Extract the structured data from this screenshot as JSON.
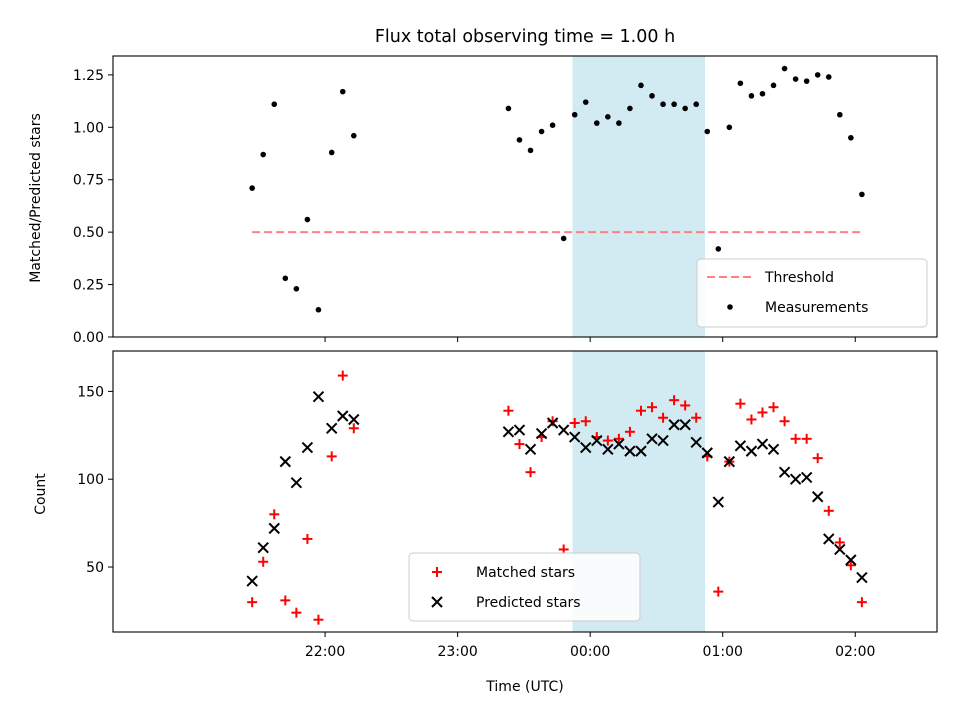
{
  "figure": {
    "title": "Flux total observing time = 1.00 h"
  },
  "chart_data": [
    {
      "type": "scatter",
      "ylabel": "Matched/Predicted stars",
      "xlim_minutes_after_2100": [
        -36,
        337
      ],
      "ylim": [
        0,
        1.34
      ],
      "y_ticks": [
        0.0,
        0.25,
        0.5,
        0.75,
        1.0,
        1.25
      ],
      "y_tick_labels": [
        "0.00",
        "0.25",
        "0.50",
        "0.75",
        "1.00",
        "1.25"
      ],
      "highlight_span": {
        "start": "23:52",
        "end": "00:52",
        "color": "#add8e6"
      },
      "threshold": {
        "name": "Threshold",
        "value": 0.5,
        "x_range": [
          "21:27",
          "02:03"
        ],
        "color": "#ff7f7f"
      },
      "legend": {
        "position": "lower right",
        "entries": [
          "Threshold",
          "Measurements"
        ]
      },
      "series": [
        {
          "name": "Measurements",
          "marker": "dot",
          "color": "#000000",
          "points": [
            {
              "time": "21:27",
              "y": 0.71
            },
            {
              "time": "21:32",
              "y": 0.87
            },
            {
              "time": "21:37",
              "y": 1.11
            },
            {
              "time": "21:42",
              "y": 0.28
            },
            {
              "time": "21:47",
              "y": 0.23
            },
            {
              "time": "21:52",
              "y": 0.56
            },
            {
              "time": "21:57",
              "y": 0.13
            },
            {
              "time": "22:03",
              "y": 0.88
            },
            {
              "time": "22:08",
              "y": 1.17
            },
            {
              "time": "22:13",
              "y": 0.96
            },
            {
              "time": "23:23",
              "y": 1.09
            },
            {
              "time": "23:28",
              "y": 0.94
            },
            {
              "time": "23:33",
              "y": 0.89
            },
            {
              "time": "23:38",
              "y": 0.98
            },
            {
              "time": "23:43",
              "y": 1.01
            },
            {
              "time": "23:48",
              "y": 0.47
            },
            {
              "time": "23:53",
              "y": 1.06
            },
            {
              "time": "23:58",
              "y": 1.12
            },
            {
              "time": "00:03",
              "y": 1.02
            },
            {
              "time": "00:08",
              "y": 1.05
            },
            {
              "time": "00:13",
              "y": 1.02
            },
            {
              "time": "00:18",
              "y": 1.09
            },
            {
              "time": "00:23",
              "y": 1.2
            },
            {
              "time": "00:28",
              "y": 1.15
            },
            {
              "time": "00:33",
              "y": 1.11
            },
            {
              "time": "00:38",
              "y": 1.11
            },
            {
              "time": "00:43",
              "y": 1.09
            },
            {
              "time": "00:48",
              "y": 1.11
            },
            {
              "time": "00:53",
              "y": 0.98
            },
            {
              "time": "00:58",
              "y": 0.42
            },
            {
              "time": "01:03",
              "y": 1.0
            },
            {
              "time": "01:08",
              "y": 1.21
            },
            {
              "time": "01:13",
              "y": 1.15
            },
            {
              "time": "01:18",
              "y": 1.16
            },
            {
              "time": "01:23",
              "y": 1.2
            },
            {
              "time": "01:28",
              "y": 1.28
            },
            {
              "time": "01:33",
              "y": 1.23
            },
            {
              "time": "01:38",
              "y": 1.22
            },
            {
              "time": "01:43",
              "y": 1.25
            },
            {
              "time": "01:48",
              "y": 1.24
            },
            {
              "time": "01:53",
              "y": 1.06
            },
            {
              "time": "01:58",
              "y": 0.95
            },
            {
              "time": "02:03",
              "y": 0.68
            }
          ]
        }
      ]
    },
    {
      "type": "scatter",
      "xlabel": "Time (UTC)",
      "ylabel": "Count",
      "xlim_minutes_after_2100": [
        -36,
        337
      ],
      "ylim": [
        13,
        173
      ],
      "x_ticks": [
        "22:00",
        "23:00",
        "00:00",
        "01:00",
        "02:00"
      ],
      "y_ticks": [
        50,
        100,
        150
      ],
      "highlight_span": {
        "start": "23:52",
        "end": "00:52",
        "color": "#add8e6"
      },
      "legend": {
        "position": "lower center",
        "entries": [
          "Matched stars",
          "Predicted stars"
        ]
      },
      "series": [
        {
          "name": "Matched stars",
          "marker": "plus",
          "color": "#ff0000",
          "points": [
            {
              "time": "21:27",
              "y": 30
            },
            {
              "time": "21:32",
              "y": 53
            },
            {
              "time": "21:37",
              "y": 80
            },
            {
              "time": "21:42",
              "y": 31
            },
            {
              "time": "21:47",
              "y": 24
            },
            {
              "time": "21:52",
              "y": 66
            },
            {
              "time": "21:57",
              "y": 20
            },
            {
              "time": "22:03",
              "y": 113
            },
            {
              "time": "22:08",
              "y": 159
            },
            {
              "time": "22:13",
              "y": 129
            },
            {
              "time": "23:23",
              "y": 139
            },
            {
              "time": "23:28",
              "y": 120
            },
            {
              "time": "23:33",
              "y": 104
            },
            {
              "time": "23:38",
              "y": 124
            },
            {
              "time": "23:43",
              "y": 133
            },
            {
              "time": "23:48",
              "y": 60
            },
            {
              "time": "23:53",
              "y": 132
            },
            {
              "time": "23:58",
              "y": 133
            },
            {
              "time": "00:03",
              "y": 124
            },
            {
              "time": "00:08",
              "y": 122
            },
            {
              "time": "00:13",
              "y": 123
            },
            {
              "time": "00:18",
              "y": 127
            },
            {
              "time": "00:23",
              "y": 139
            },
            {
              "time": "00:28",
              "y": 141
            },
            {
              "time": "00:33",
              "y": 135
            },
            {
              "time": "00:38",
              "y": 145
            },
            {
              "time": "00:43",
              "y": 142
            },
            {
              "time": "00:48",
              "y": 135
            },
            {
              "time": "00:53",
              "y": 113
            },
            {
              "time": "00:58",
              "y": 36
            },
            {
              "time": "01:03",
              "y": 110
            },
            {
              "time": "01:08",
              "y": 143
            },
            {
              "time": "01:13",
              "y": 134
            },
            {
              "time": "01:18",
              "y": 138
            },
            {
              "time": "01:23",
              "y": 141
            },
            {
              "time": "01:28",
              "y": 133
            },
            {
              "time": "01:33",
              "y": 123
            },
            {
              "time": "01:38",
              "y": 123
            },
            {
              "time": "01:43",
              "y": 112
            },
            {
              "time": "01:48",
              "y": 82
            },
            {
              "time": "01:53",
              "y": 64
            },
            {
              "time": "01:58",
              "y": 51
            },
            {
              "time": "02:03",
              "y": 30
            }
          ]
        },
        {
          "name": "Predicted stars",
          "marker": "x",
          "color": "#000000",
          "points": [
            {
              "time": "21:27",
              "y": 42
            },
            {
              "time": "21:32",
              "y": 61
            },
            {
              "time": "21:37",
              "y": 72
            },
            {
              "time": "21:42",
              "y": 110
            },
            {
              "time": "21:47",
              "y": 98
            },
            {
              "time": "21:52",
              "y": 118
            },
            {
              "time": "21:57",
              "y": 147
            },
            {
              "time": "22:03",
              "y": 129
            },
            {
              "time": "22:08",
              "y": 136
            },
            {
              "time": "22:13",
              "y": 134
            },
            {
              "time": "23:23",
              "y": 127
            },
            {
              "time": "23:28",
              "y": 128
            },
            {
              "time": "23:33",
              "y": 117
            },
            {
              "time": "23:38",
              "y": 126
            },
            {
              "time": "23:43",
              "y": 132
            },
            {
              "time": "23:48",
              "y": 128
            },
            {
              "time": "23:53",
              "y": 124
            },
            {
              "time": "23:58",
              "y": 118
            },
            {
              "time": "00:03",
              "y": 122
            },
            {
              "time": "00:08",
              "y": 117
            },
            {
              "time": "00:13",
              "y": 120
            },
            {
              "time": "00:18",
              "y": 116
            },
            {
              "time": "00:23",
              "y": 116
            },
            {
              "time": "00:28",
              "y": 123
            },
            {
              "time": "00:33",
              "y": 122
            },
            {
              "time": "00:38",
              "y": 131
            },
            {
              "time": "00:43",
              "y": 131
            },
            {
              "time": "00:48",
              "y": 121
            },
            {
              "time": "00:53",
              "y": 115
            },
            {
              "time": "00:58",
              "y": 87
            },
            {
              "time": "01:03",
              "y": 110
            },
            {
              "time": "01:08",
              "y": 119
            },
            {
              "time": "01:13",
              "y": 116
            },
            {
              "time": "01:18",
              "y": 120
            },
            {
              "time": "01:23",
              "y": 117
            },
            {
              "time": "01:28",
              "y": 104
            },
            {
              "time": "01:33",
              "y": 100
            },
            {
              "time": "01:38",
              "y": 101
            },
            {
              "time": "01:43",
              "y": 90
            },
            {
              "time": "01:48",
              "y": 66
            },
            {
              "time": "01:53",
              "y": 60
            },
            {
              "time": "01:58",
              "y": 54
            },
            {
              "time": "02:03",
              "y": 44
            }
          ]
        }
      ]
    }
  ]
}
